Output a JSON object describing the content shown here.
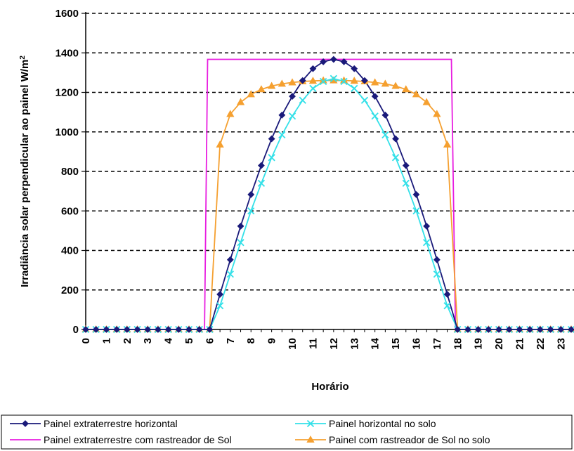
{
  "chart_data": {
    "type": "line",
    "xlabel": "Horário",
    "ylabel": "Irradiância solar perpendicular ao painel W/m²",
    "ylim": [
      0,
      1600
    ],
    "xlim": [
      0,
      23.5
    ],
    "y_ticks": [
      0,
      200,
      400,
      600,
      800,
      1000,
      1200,
      1400,
      1600
    ],
    "x_ticks": [
      0,
      1,
      2,
      3,
      4,
      5,
      6,
      7,
      8,
      9,
      10,
      11,
      12,
      13,
      14,
      15,
      16,
      17,
      18,
      19,
      20,
      21,
      22,
      23
    ],
    "grid": "horizontal dashed",
    "legend_position": "bottom",
    "series": [
      {
        "name": "Painel extraterrestre horizontal",
        "color": "#1a1a7a",
        "marker": "diamond",
        "x": [
          0,
          0.5,
          1,
          1.5,
          2,
          2.5,
          3,
          3.5,
          4,
          4.5,
          5,
          5.5,
          6,
          6.5,
          7,
          7.5,
          8,
          8.5,
          9,
          9.5,
          10,
          10.5,
          11,
          11.5,
          12,
          12.5,
          13,
          13.5,
          14,
          14.5,
          15,
          15.5,
          16,
          16.5,
          17,
          17.5,
          18,
          18.5,
          19,
          19.5,
          20,
          20.5,
          21,
          21.5,
          22,
          22.5,
          23,
          23.5
        ],
        "y": [
          0,
          0,
          0,
          0,
          0,
          0,
          0,
          0,
          0,
          0,
          0,
          0,
          0,
          178,
          353,
          523,
          683,
          830,
          965,
          1085,
          1180,
          1260,
          1320,
          1355,
          1367,
          1355,
          1320,
          1260,
          1180,
          1085,
          965,
          830,
          683,
          523,
          353,
          178,
          0,
          0,
          0,
          0,
          0,
          0,
          0,
          0,
          0,
          0,
          0,
          0
        ]
      },
      {
        "name": "Painel horizontal no solo",
        "color": "#33e0e8",
        "marker": "x",
        "x": [
          0,
          0.5,
          1,
          1.5,
          2,
          2.5,
          3,
          3.5,
          4,
          4.5,
          5,
          5.5,
          6,
          6.5,
          7,
          7.5,
          8,
          8.5,
          9,
          9.5,
          10,
          10.5,
          11,
          11.5,
          12,
          12.5,
          13,
          13.5,
          14,
          14.5,
          15,
          15.5,
          16,
          16.5,
          17,
          17.5,
          18,
          18.5,
          19,
          19.5,
          20,
          20.5,
          21,
          21.5,
          22,
          22.5,
          23,
          23.5
        ],
        "y": [
          0,
          0,
          0,
          0,
          0,
          0,
          0,
          0,
          0,
          0,
          0,
          0,
          0,
          120,
          280,
          440,
          600,
          740,
          870,
          985,
          1080,
          1160,
          1220,
          1255,
          1270,
          1255,
          1220,
          1160,
          1080,
          985,
          870,
          740,
          600,
          440,
          280,
          120,
          0,
          0,
          0,
          0,
          0,
          0,
          0,
          0,
          0,
          0,
          0,
          0
        ]
      },
      {
        "name": "Painel extraterrestre com rastreador de Sol",
        "color": "#e81ee0",
        "marker": "none",
        "x": [
          0,
          5.75,
          5.9,
          17.7,
          17.9,
          23.5
        ],
        "y": [
          0,
          0,
          1367,
          1367,
          0,
          0
        ]
      },
      {
        "name": "Painel com rastreador de Sol no solo",
        "color": "#f5a030",
        "marker": "triangle",
        "x": [
          0,
          0.5,
          1,
          1.5,
          2,
          2.5,
          3,
          3.5,
          4,
          4.5,
          5,
          5.5,
          6,
          6.5,
          7,
          7.5,
          8,
          8.5,
          9,
          9.5,
          10,
          10.5,
          11,
          11.5,
          12,
          12.5,
          13,
          13.5,
          14,
          14.5,
          15,
          15.5,
          16,
          16.5,
          17,
          17.5,
          18,
          18.5,
          19,
          19.5,
          20,
          20.5,
          21,
          21.5,
          22,
          22.5,
          23,
          23.5
        ],
        "y": [
          0,
          0,
          0,
          0,
          0,
          0,
          0,
          0,
          0,
          0,
          0,
          0,
          0,
          935,
          1090,
          1150,
          1190,
          1215,
          1232,
          1243,
          1250,
          1255,
          1258,
          1260,
          1260,
          1260,
          1258,
          1255,
          1250,
          1243,
          1232,
          1215,
          1190,
          1150,
          1090,
          935,
          0,
          0,
          0,
          0,
          0,
          0,
          0,
          0,
          0,
          0,
          0,
          0
        ]
      }
    ]
  }
}
